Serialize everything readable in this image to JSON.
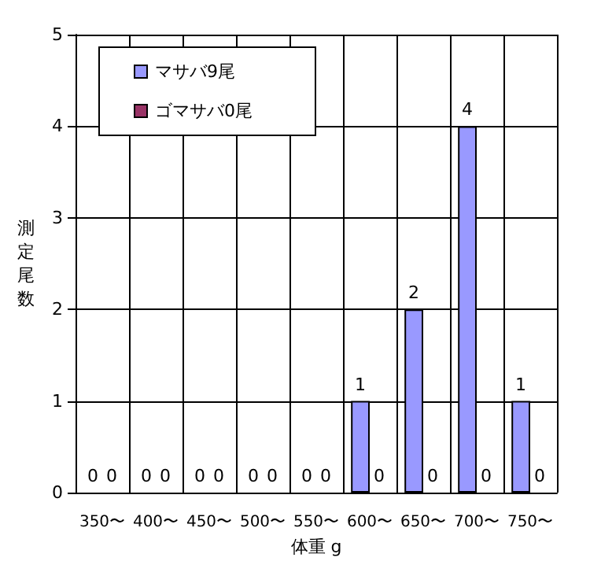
{
  "chart_data": {
    "type": "bar",
    "xlabel": "体重 g",
    "ylabel": "測定尾数",
    "categories": [
      "350〜",
      "400〜",
      "450〜",
      "500〜",
      "550〜",
      "600〜",
      "650〜",
      "700〜",
      "750〜"
    ],
    "series": [
      {
        "name": "マサバ9尾",
        "color": "#9999ff",
        "values": [
          0,
          0,
          0,
          0,
          0,
          1,
          2,
          4,
          1
        ]
      },
      {
        "name": "ゴマサバ0尾",
        "color": "#993366",
        "values": [
          0,
          0,
          0,
          0,
          0,
          0,
          0,
          0,
          0
        ]
      }
    ],
    "ylim": [
      0,
      5
    ],
    "yticks": [
      0,
      1,
      2,
      3,
      4,
      5
    ],
    "grid": true,
    "legend": "top left",
    "data_labels": true
  }
}
